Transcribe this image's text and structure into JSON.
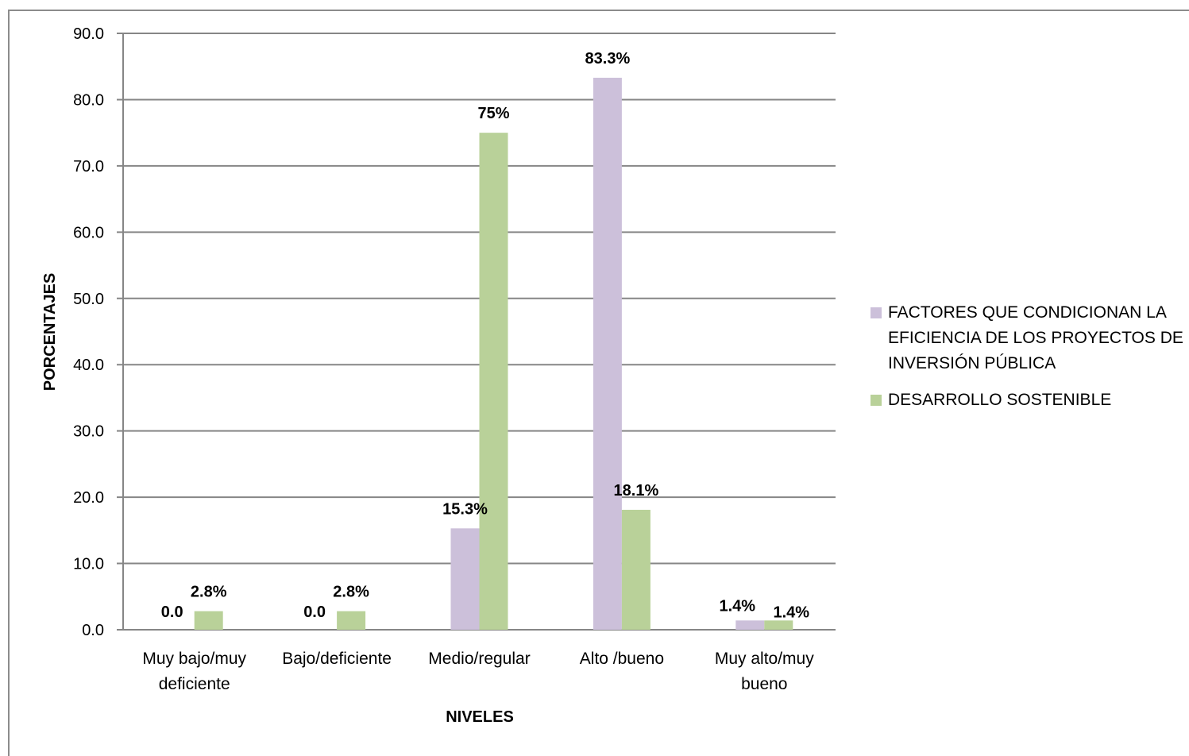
{
  "colors": {
    "series1": "#ccc0da",
    "series2": "#b9d199",
    "grid": "#868686",
    "text": "#000000"
  },
  "chart_data": {
    "type": "bar",
    "categories": [
      [
        "Muy bajo/muy",
        "deficiente"
      ],
      [
        "Bajo/deficiente"
      ],
      [
        "Medio/regular"
      ],
      [
        "Alto /bueno"
      ],
      [
        "Muy alto/muy",
        "bueno"
      ]
    ],
    "series": [
      {
        "name": "FACTORES QUE CONDICIONAN LA EFICIENCIA DE LOS PROYECTOS DE INVERSIÓN PÚBLICA",
        "values": [
          0.0,
          0.0,
          15.3,
          83.3,
          1.4
        ],
        "data_labels": [
          "0.0",
          "0.0",
          "15.3%",
          "83.3%",
          "1.4%"
        ]
      },
      {
        "name": "DESARROLLO SOSTENIBLE",
        "values": [
          2.8,
          2.8,
          75.0,
          18.1,
          1.4
        ],
        "data_labels": [
          "2.8%",
          "2.8%",
          "75%",
          "18.1%",
          "1.4%"
        ]
      }
    ],
    "yticks": [
      "0.0",
      "10.0",
      "20.0",
      "30.0",
      "40.0",
      "50.0",
      "60.0",
      "70.0",
      "80.0",
      "90.0"
    ],
    "ylim": [
      0,
      90
    ],
    "xlabel": "NIVELES",
    "ylabel": "PORCENTAJES",
    "grid": true,
    "legend_position": "right"
  }
}
